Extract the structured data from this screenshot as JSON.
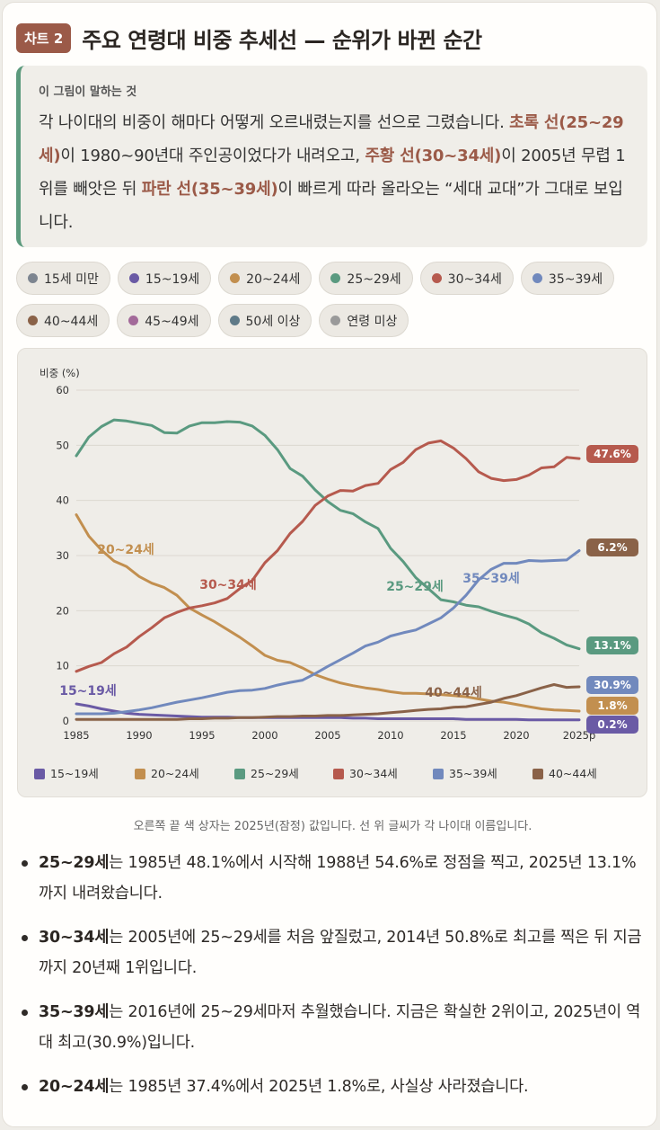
{
  "header": {
    "badge": "차트 2",
    "title": "주요 연령대 비중 추세선 — 순위가 바뀐 순간"
  },
  "explain": {
    "label": "이 그림이 말하는 것",
    "t1": "각 나이대의 비중이 해마다 어떻게 오르내렸는지를 선으로 그렸습니다. ",
    "b1": "초록 선(25~29세)",
    "t2": "이 1980~90년대 주인공이었다가 내려오고, ",
    "b2": "주황 선(30~34세)",
    "t3": "이 2005년 무렵 1위를 빼앗은 뒤 ",
    "b3": "파란 선(35~39세)",
    "t4": "이 빠르게 따라 올라오는 “세대 교대”가 그대로 보입니다."
  },
  "chips": [
    {
      "label": "15세 미만",
      "color": "#7d8590"
    },
    {
      "label": "15~19세",
      "color": "#6a5aa5"
    },
    {
      "label": "20~24세",
      "color": "#c28f4f"
    },
    {
      "label": "25~29세",
      "color": "#5a9a80"
    },
    {
      "label": "30~34세",
      "color": "#b65a4e"
    },
    {
      "label": "35~39세",
      "color": "#7189bd"
    },
    {
      "label": "40~44세",
      "color": "#8a6248"
    },
    {
      "label": "45~49세",
      "color": "#a36a9a"
    },
    {
      "label": "50세 이상",
      "color": "#5f7a88"
    },
    {
      "label": "연령 미상",
      "color": "#9a9a9a"
    }
  ],
  "chart_data": {
    "type": "line",
    "ylabel": "비중 (%)",
    "ylim": [
      0,
      60
    ],
    "yticks": [
      "0",
      "10",
      "20",
      "30",
      "40",
      "50",
      "60"
    ],
    "xlim": [
      1985,
      2025
    ],
    "xticks": [
      {
        "v": 1985,
        "label": "1985"
      },
      {
        "v": 1990,
        "label": "1990"
      },
      {
        "v": 1995,
        "label": "1995"
      },
      {
        "v": 2000,
        "label": "2000"
      },
      {
        "v": 2005,
        "label": "2005"
      },
      {
        "v": 2010,
        "label": "2010"
      },
      {
        "v": 2015,
        "label": "2015"
      },
      {
        "v": 2020,
        "label": "2020"
      },
      {
        "v": 2025,
        "label": "2025p"
      }
    ],
    "grid": true,
    "legend_position": "bottom",
    "x": [
      1985,
      1986,
      1987,
      1988,
      1989,
      1990,
      1991,
      1992,
      1993,
      1994,
      1995,
      1996,
      1997,
      1998,
      1999,
      2000,
      2001,
      2002,
      2003,
      2004,
      2005,
      2006,
      2007,
      2008,
      2009,
      2010,
      2011,
      2012,
      2013,
      2014,
      2015,
      2016,
      2017,
      2018,
      2019,
      2020,
      2021,
      2022,
      2023,
      2024,
      2025
    ],
    "series": [
      {
        "name": "15~19세",
        "color": "#6a5aa5",
        "inline_label": "15~19세",
        "end_label": "0.2%",
        "values": [
          3.1,
          2.7,
          2.2,
          1.8,
          1.4,
          1.2,
          1.1,
          1.0,
          0.9,
          0.8,
          0.7,
          0.7,
          0.7,
          0.6,
          0.6,
          0.6,
          0.6,
          0.6,
          0.6,
          0.6,
          0.6,
          0.6,
          0.5,
          0.5,
          0.4,
          0.4,
          0.4,
          0.4,
          0.4,
          0.4,
          0.4,
          0.3,
          0.3,
          0.3,
          0.3,
          0.3,
          0.2,
          0.2,
          0.2,
          0.2,
          0.2
        ]
      },
      {
        "name": "20~24세",
        "color": "#c28f4f",
        "inline_label": "20~24세",
        "end_label": "1.8%",
        "values": [
          37.4,
          33.5,
          31.0,
          29.0,
          28.0,
          26.2,
          25.0,
          24.2,
          22.8,
          20.5,
          19.2,
          18.0,
          16.6,
          15.2,
          13.6,
          11.9,
          11.0,
          10.6,
          9.6,
          8.4,
          7.6,
          6.9,
          6.4,
          6.0,
          5.7,
          5.3,
          5.0,
          5.0,
          4.9,
          4.8,
          4.6,
          4.4,
          4.0,
          3.6,
          3.4,
          3.0,
          2.6,
          2.2,
          2.0,
          1.9,
          1.8
        ]
      },
      {
        "name": "25~29세",
        "color": "#5a9a80",
        "inline_label": "25~29세",
        "end_label": "13.1%",
        "values": [
          48.1,
          51.5,
          53.4,
          54.6,
          54.4,
          54.0,
          53.6,
          52.3,
          52.2,
          53.5,
          54.1,
          54.1,
          54.3,
          54.2,
          53.5,
          51.8,
          49.2,
          45.8,
          44.4,
          41.9,
          39.8,
          38.2,
          37.6,
          36.1,
          34.9,
          31.3,
          28.9,
          26.0,
          24.0,
          22.0,
          21.6,
          21.0,
          20.7,
          19.9,
          19.2,
          18.6,
          17.6,
          16.0,
          15.0,
          13.8,
          13.1
        ]
      },
      {
        "name": "30~34세",
        "color": "#b65a4e",
        "inline_label": "30~34세",
        "end_label": "47.6%",
        "values": [
          9.0,
          9.9,
          10.6,
          12.2,
          13.4,
          15.3,
          16.9,
          18.7,
          19.7,
          20.5,
          20.9,
          21.4,
          22.2,
          24.0,
          25.5,
          28.7,
          30.9,
          34.0,
          36.2,
          39.1,
          40.8,
          41.8,
          41.7,
          42.7,
          43.1,
          45.6,
          46.9,
          49.2,
          50.4,
          50.8,
          49.5,
          47.6,
          45.2,
          44.0,
          43.6,
          43.8,
          44.6,
          45.9,
          46.1,
          47.8,
          47.6
        ]
      },
      {
        "name": "35~39세",
        "color": "#7189bd",
        "inline_label": "35~39세",
        "end_label": "30.9%",
        "values": [
          1.3,
          1.3,
          1.3,
          1.4,
          1.7,
          2.0,
          2.4,
          2.9,
          3.4,
          3.8,
          4.2,
          4.7,
          5.2,
          5.5,
          5.6,
          5.9,
          6.5,
          7.0,
          7.4,
          8.6,
          9.9,
          11.1,
          12.3,
          13.6,
          14.3,
          15.4,
          16.0,
          16.5,
          17.6,
          18.7,
          20.5,
          22.8,
          25.6,
          27.5,
          28.6,
          28.6,
          29.1,
          29.0,
          29.1,
          29.2,
          30.9
        ]
      },
      {
        "name": "40~44세",
        "color": "#8a6248",
        "inline_label": "40~44세",
        "end_label": "6.2%",
        "values": [
          0.3,
          0.3,
          0.3,
          0.3,
          0.3,
          0.3,
          0.3,
          0.3,
          0.3,
          0.4,
          0.4,
          0.5,
          0.5,
          0.6,
          0.6,
          0.7,
          0.8,
          0.8,
          0.9,
          0.9,
          1.0,
          1.0,
          1.1,
          1.2,
          1.3,
          1.5,
          1.7,
          1.9,
          2.1,
          2.2,
          2.5,
          2.6,
          3.0,
          3.4,
          4.1,
          4.6,
          5.3,
          6.0,
          6.6,
          6.1,
          6.2
        ]
      }
    ]
  },
  "note": "오른쪽 끝 색 상자는 2025년(잠정) 값입니다. 선 위 글씨가 각 나이대 이름입니다.",
  "bullets": [
    {
      "b": "25~29세",
      "t": "는 1985년 48.1%에서 시작해 1988년 54.6%로 정점을 찍고, 2025년 13.1%까지 내려왔습니다."
    },
    {
      "b": "30~34세",
      "t": "는 2005년에 25~29세를 처음 앞질렀고, 2014년 50.8%로 최고를 찍은 뒤 지금까지 20년째 1위입니다."
    },
    {
      "b": "35~39세",
      "t": "는 2016년에 25~29세마저 추월했습니다. 지금은 확실한 2위이고, 2025년이 역대 최고(30.9%)입니다."
    },
    {
      "b": "20~24세",
      "t": "는 1985년 37.4%에서 2025년 1.8%로, 사실상 사라졌습니다."
    }
  ]
}
